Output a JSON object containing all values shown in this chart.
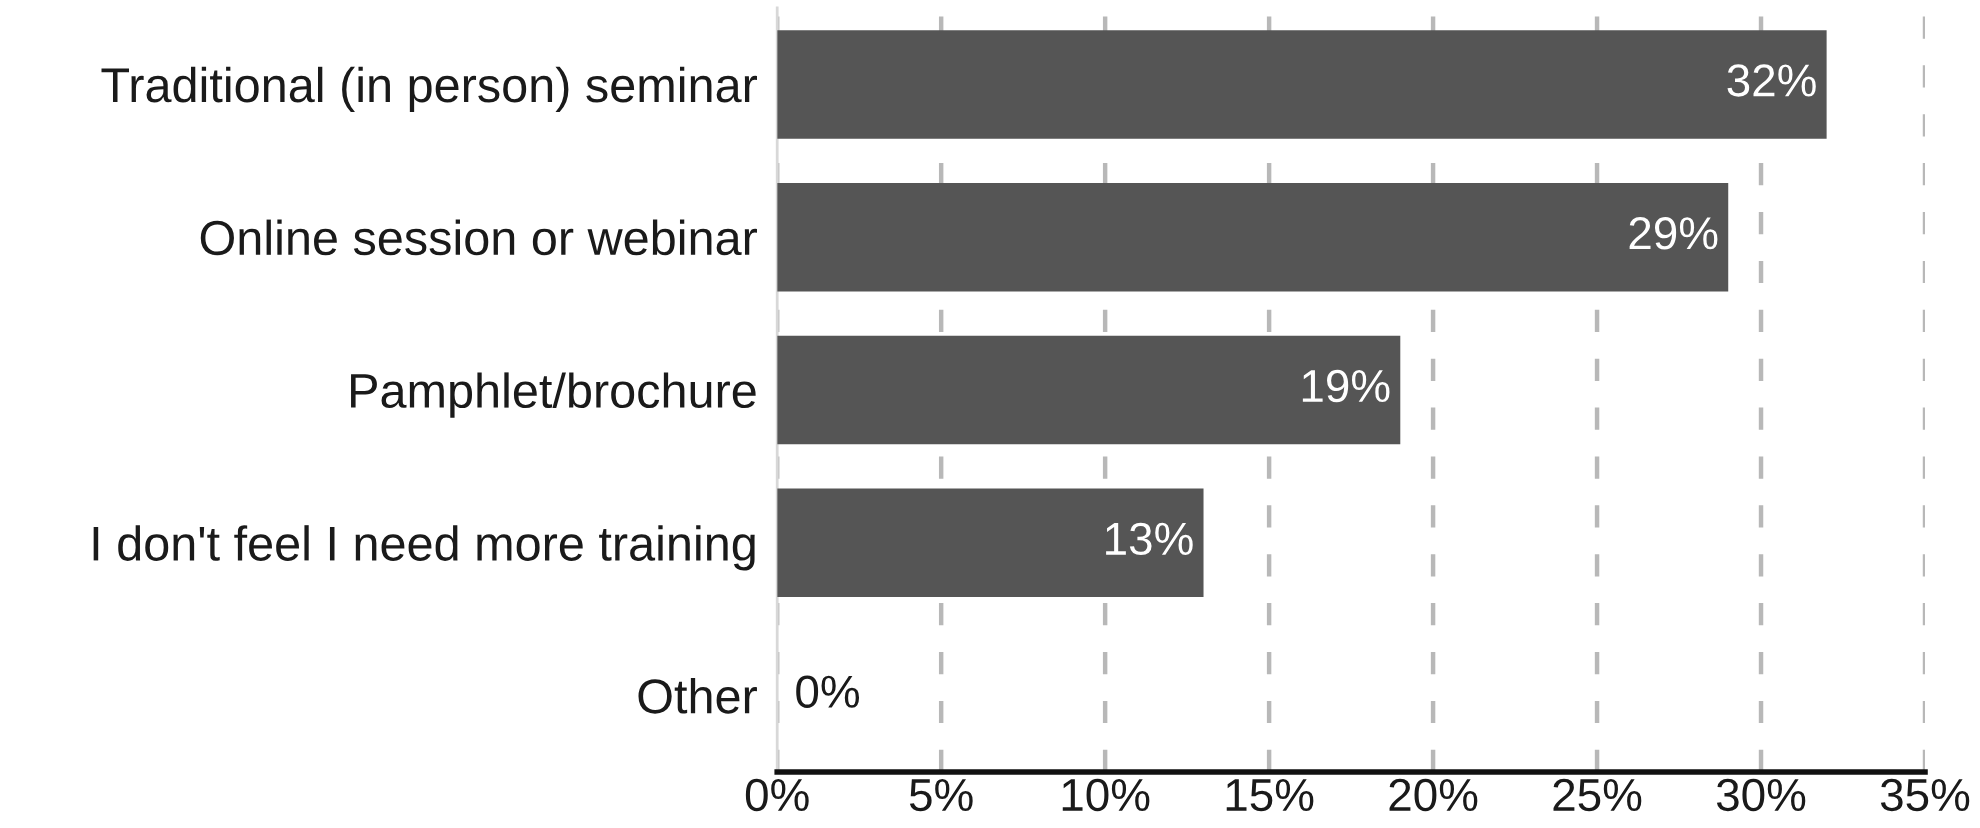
{
  "chart_data": {
    "type": "bar",
    "orientation": "horizontal",
    "categories": [
      "Traditional (in person) seminar",
      "Online session or webinar",
      "Pamphlet/brochure",
      "I don't feel I need more training",
      "Other"
    ],
    "values": [
      32,
      29,
      19,
      13,
      0
    ],
    "color": "#555555",
    "value_labels": [
      "32%",
      "29%",
      "19%",
      "13%",
      "0%"
    ],
    "xlim": [
      0,
      35
    ],
    "xticks": [
      {
        "value": 0,
        "label": "0%"
      },
      {
        "value": 5,
        "label": "5%"
      },
      {
        "value": 10,
        "label": "10%"
      },
      {
        "value": 15,
        "label": "15%"
      },
      {
        "value": 20,
        "label": "20%"
      },
      {
        "value": 25,
        "label": "25%"
      },
      {
        "value": 30,
        "label": "30%"
      },
      {
        "value": 35,
        "label": "35%"
      }
    ],
    "grid": "x",
    "legend": false
  }
}
